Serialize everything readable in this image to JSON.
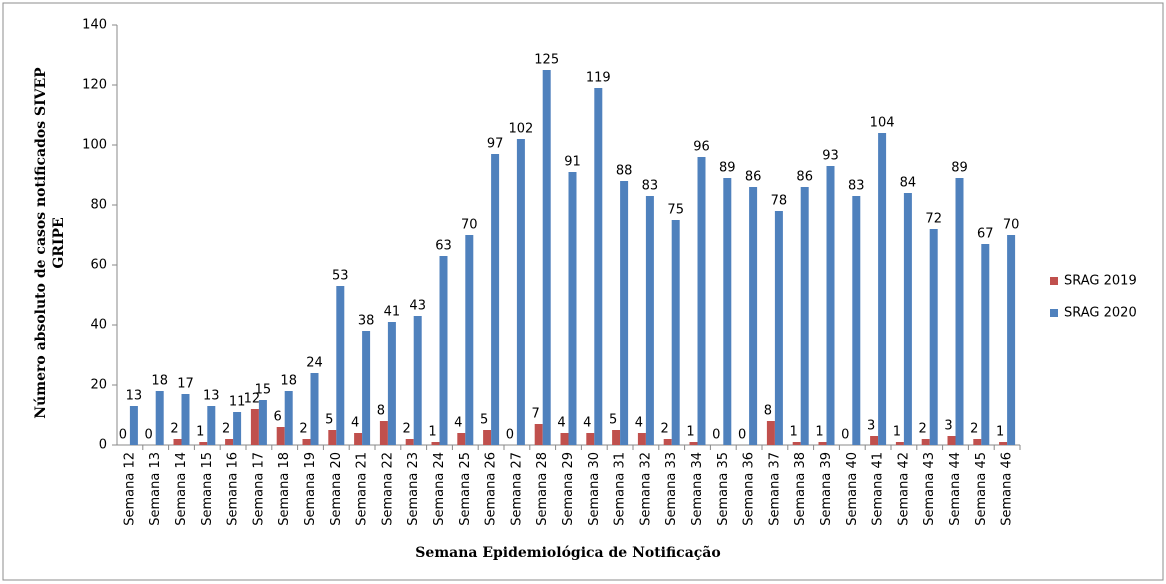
{
  "chart_data": {
    "type": "bar",
    "x_label": "Semana Epidemiológica de Notificação",
    "y_label": "Número absoluto de casos notificados SIVEP GRIPE",
    "categories": [
      "Semana 12",
      "Semana 13",
      "Semana 14",
      "Semana 15",
      "Semana 16",
      "Semana 17",
      "Semana 18",
      "Semana 19",
      "Semana 20",
      "Semana 21",
      "Semana 22",
      "Semana 23",
      "Semana 24",
      "Semana 25",
      "Semana 26",
      "Semana 27",
      "Semana 28",
      "Semana 29",
      "Semana 30",
      "Semana 31",
      "Semana 32",
      "Semana 33",
      "Semana 34",
      "Semana 35",
      "Semana 36",
      "Semana 37",
      "Semana 38",
      "Semana 39",
      "Semana 40",
      "Semana 41",
      "Semana 42",
      "Semana 43",
      "Semana 44",
      "Semana 45",
      "Semana 46"
    ],
    "series": [
      {
        "name": "SRAG 2019",
        "color": "#c0504d",
        "values": [
          0,
          0,
          2,
          1,
          2,
          12,
          6,
          2,
          5,
          4,
          8,
          2,
          1,
          4,
          5,
          0,
          7,
          4,
          4,
          5,
          4,
          2,
          1,
          0,
          0,
          8,
          1,
          1,
          0,
          3,
          1,
          2,
          3,
          2,
          1
        ]
      },
      {
        "name": "SRAG 2020",
        "color": "#4f81bd",
        "values": [
          13,
          18,
          17,
          13,
          11,
          15,
          18,
          24,
          53,
          38,
          41,
          43,
          63,
          70,
          97,
          102,
          125,
          91,
          119,
          88,
          83,
          75,
          96,
          89,
          86,
          78,
          86,
          93,
          83,
          104,
          84,
          72,
          89,
          67,
          70
        ]
      }
    ],
    "ylim": [
      0,
      140
    ],
    "yticks": [
      0,
      20,
      40,
      60,
      80,
      100,
      120,
      140
    ],
    "grid": false,
    "legend": "right"
  }
}
